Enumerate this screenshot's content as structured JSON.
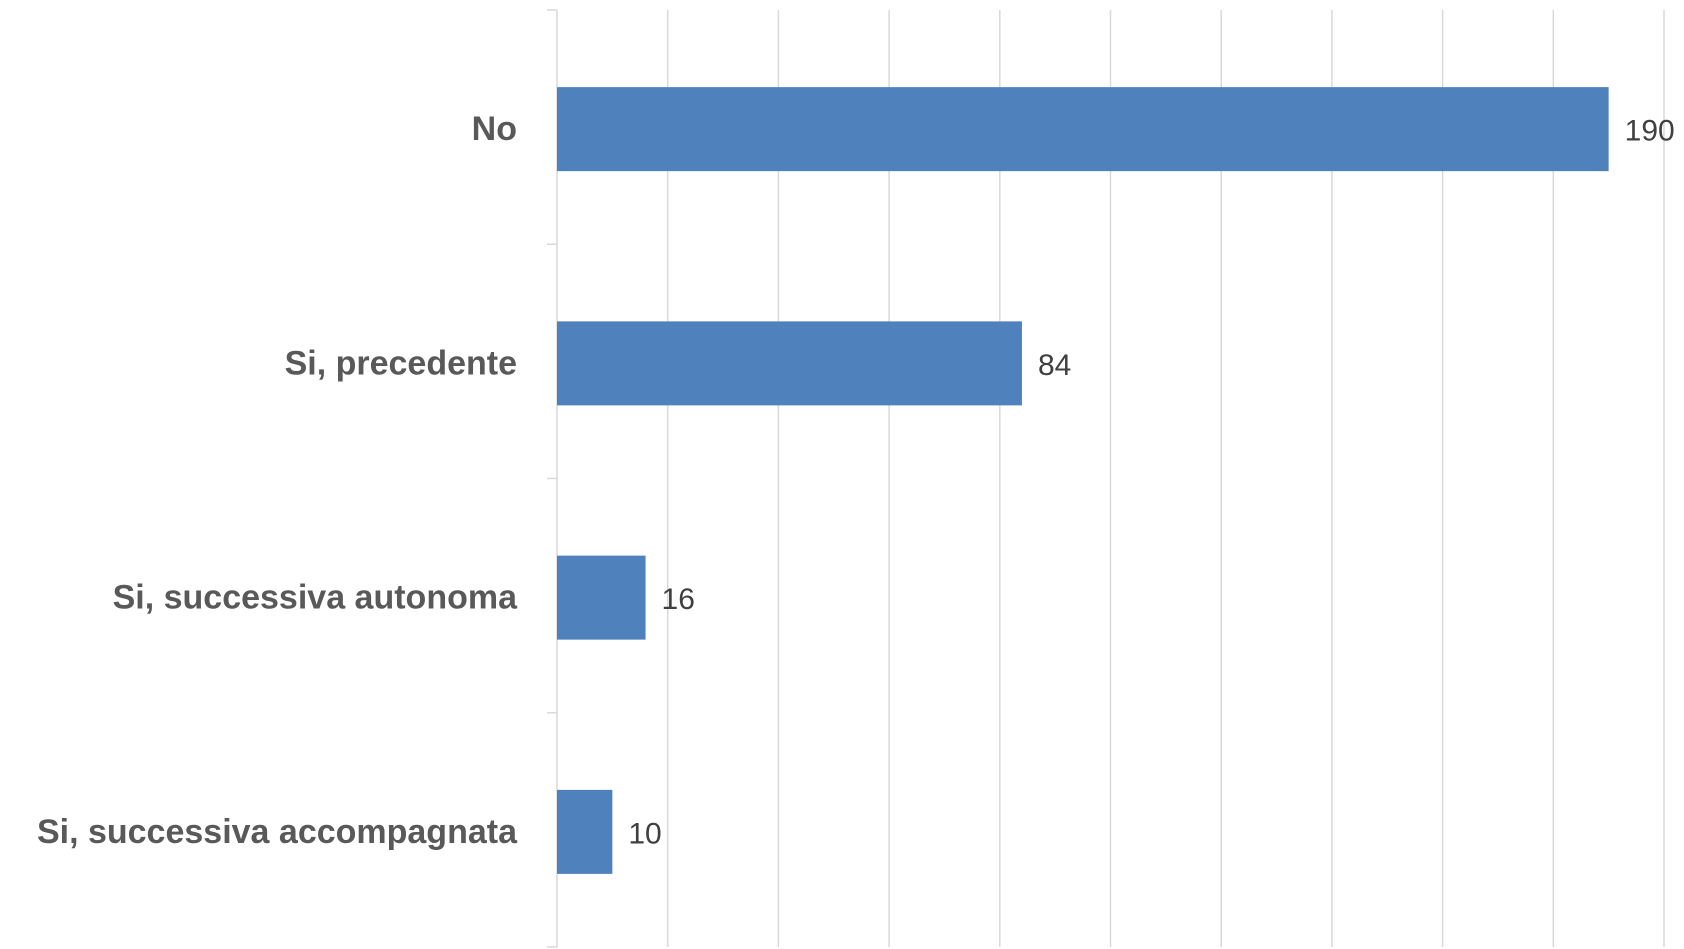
{
  "chart_data": {
    "type": "bar",
    "orientation": "horizontal",
    "categories": [
      "No",
      "Si, precedente",
      "Si, successiva autonoma",
      "Si, successiva accompagnata"
    ],
    "values": [
      190,
      84,
      16,
      10
    ],
    "title": "",
    "xlabel": "",
    "ylabel": "",
    "xlim": [
      0,
      200
    ],
    "x_gridline_step": 20,
    "grid": true,
    "legend": "none",
    "data_labels": true,
    "bar_color": "#4f81bd"
  }
}
